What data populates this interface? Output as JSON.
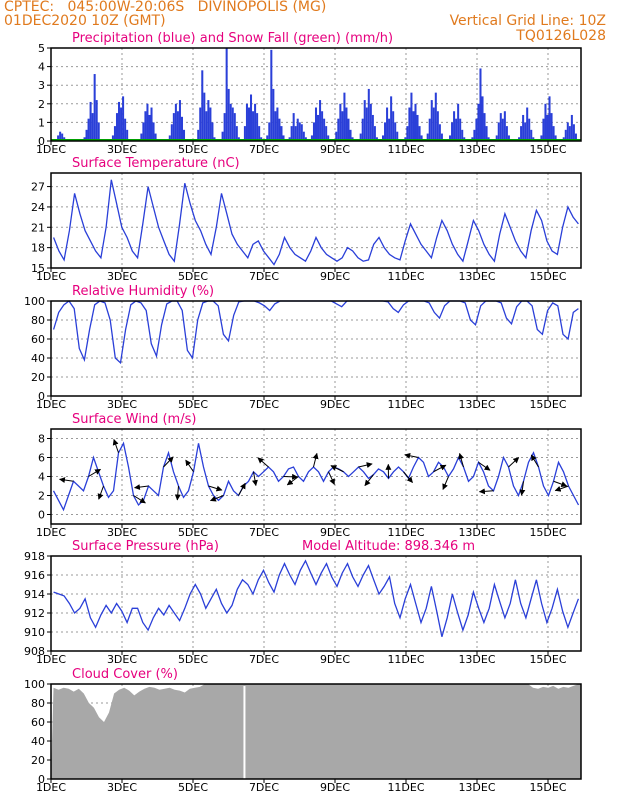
{
  "header": {
    "line1_left": "CPTEC:   045:00W-20:06S   DIVINOPOLIS (MG)",
    "line2_left": "01DEC2020 10Z (GMT)",
    "line2_right": "Vertical Grid Line: 10Z",
    "line3_right": "TQ0126L028"
  },
  "colors": {
    "header": "#e07a1e",
    "title": "#e6007e",
    "series": "#2a3fd8",
    "snow": "#00a000",
    "cloud": "#a8a8a8",
    "grid": "#9a9a9a"
  },
  "chart_data": [
    {
      "id": "precip",
      "type": "bar",
      "title": "Precipitation (blue) and Snow Fall (green) (mm/h)",
      "x_ticks": [
        "1DEC",
        "3DEC",
        "5DEC",
        "7DEC",
        "9DEC",
        "11DEC",
        "13DEC",
        "15DEC"
      ],
      "ylim": [
        0,
        5
      ],
      "y_ticks": [
        0,
        1,
        2,
        3,
        4,
        5
      ],
      "grid": true,
      "series": [
        {
          "values": [
            0,
            0,
            0,
            0.3,
            0.5,
            0.4,
            0.2,
            0,
            0,
            0,
            0,
            0,
            0,
            0,
            0,
            0,
            0.2,
            0.6,
            1.2,
            2.1,
            1.5,
            3.6,
            2.2,
            1.0,
            0,
            0,
            0,
            0,
            0,
            0,
            0.3,
            0.8,
            1.5,
            2.1,
            1.8,
            2.4,
            1.2,
            0.6,
            0,
            0,
            0,
            0,
            0,
            0,
            0.4,
            1.0,
            1.6,
            2.0,
            1.4,
            1.8,
            1.0,
            0.4,
            0,
            0,
            0,
            0,
            0,
            0,
            0.3,
            0.9,
            1.5,
            2.0,
            1.6,
            2.2,
            1.3,
            0.6,
            0,
            0,
            0,
            0,
            0,
            0.1,
            0.6,
            1.8,
            3.8,
            2.6,
            1.6,
            2.2,
            1.8,
            1.0,
            0.2,
            0,
            0,
            0,
            0.5,
            1.5,
            5.0,
            2.8,
            2.0,
            1.8,
            1.5,
            0.8,
            0.2,
            0,
            0,
            0.8,
            2.0,
            1.8,
            2.5,
            1.6,
            2.0,
            1.5,
            0.8,
            0.2,
            0,
            0,
            0.3,
            1.0,
            4.9,
            2.8,
            1.6,
            1.8,
            1.2,
            0.8,
            0.3,
            0,
            0,
            0.2,
            0.8,
            1.5,
            0.8,
            1.2,
            1.0,
            0.9,
            0.5,
            0.2,
            0,
            0,
            0.3,
            1.0,
            1.8,
            1.4,
            2.2,
            1.6,
            1.2,
            0.8,
            0.3,
            0,
            0,
            0,
            0.5,
            1.2,
            2.0,
            1.6,
            2.6,
            1.8,
            1.2,
            0.6,
            0.2,
            0,
            0,
            0,
            0.4,
            1.2,
            2.2,
            1.8,
            2.8,
            2.0,
            1.4,
            0.8,
            0.2,
            0,
            0,
            0.3,
            1.0,
            1.8,
            1.2,
            2.4,
            1.6,
            1.0,
            0.5,
            0,
            0,
            0,
            0.2,
            0.8,
            1.8,
            2.6,
            1.6,
            2.0,
            1.4,
            0.8,
            0.3,
            0,
            0,
            0.4,
            1.2,
            2.2,
            1.8,
            2.6,
            1.6,
            0.9,
            0.4,
            0,
            0,
            0,
            0.3,
            1.0,
            1.6,
            1.2,
            2.0,
            1.2,
            0.6,
            0.2,
            0,
            0,
            0,
            0.2,
            0.6,
            1.2,
            2.0,
            3.9,
            2.4,
            1.5,
            0.8,
            0.2,
            0,
            0,
            0,
            0.3,
            1.0,
            1.5,
            1.2,
            1.6,
            0.8,
            0.3,
            0,
            0,
            0,
            0,
            0.2,
            0.8,
            1.4,
            1.0,
            1.8,
            1.2,
            0.6,
            0.2,
            0,
            0,
            0,
            0.3,
            1.2,
            2.0,
            1.4,
            2.4,
            1.5,
            0.8,
            0.3,
            0,
            0,
            0,
            0.2,
            0.6,
            1.0,
            0.8,
            1.4,
            0.9,
            0.4,
            0,
            0
          ]
        },
        {
          "values": [
            0
          ]
        }
      ]
    },
    {
      "id": "temp",
      "type": "line",
      "title": "Surface Temperature (nC)",
      "x_ticks": [
        "1DEC",
        "3DEC",
        "5DEC",
        "7DEC",
        "9DEC",
        "11DEC",
        "13DEC",
        "15DEC"
      ],
      "ylim": [
        15,
        29
      ],
      "y_ticks": [
        15,
        18,
        21,
        24,
        27
      ],
      "grid": true,
      "series": [
        {
          "values": [
            19.5,
            17.5,
            16.2,
            20.5,
            26.0,
            23.0,
            20.5,
            19.0,
            17.5,
            16.5,
            21.0,
            28.0,
            24.5,
            21.0,
            19.5,
            17.5,
            16.5,
            21.5,
            27.0,
            24.0,
            21.0,
            19.0,
            17.0,
            16.0,
            21.5,
            27.5,
            24.5,
            22.0,
            20.5,
            18.5,
            17.0,
            21.0,
            26.0,
            23.0,
            20.0,
            18.5,
            17.5,
            16.5,
            18.5,
            19.0,
            17.5,
            16.5,
            15.5,
            17.0,
            19.5,
            18.0,
            17.0,
            16.5,
            16.0,
            17.5,
            19.5,
            18.0,
            17.0,
            16.5,
            16.0,
            16.5,
            18.0,
            17.5,
            16.5,
            16.0,
            16.2,
            18.5,
            19.5,
            18.0,
            17.0,
            16.5,
            16.2,
            19.0,
            21.5,
            20.0,
            18.5,
            17.5,
            16.5,
            19.5,
            22.0,
            20.5,
            18.5,
            17.0,
            16.0,
            19.0,
            22.0,
            20.5,
            18.5,
            17.0,
            16.0,
            20.0,
            23.0,
            21.0,
            19.0,
            17.5,
            16.5,
            20.5,
            23.5,
            22.0,
            19.0,
            17.5,
            17.0,
            21.0,
            24.0,
            22.5,
            21.5
          ]
        }
      ]
    },
    {
      "id": "rh",
      "type": "line",
      "title": "Relative Humidity (%)",
      "x_ticks": [
        "1DEC",
        "3DEC",
        "5DEC",
        "7DEC",
        "9DEC",
        "11DEC",
        "13DEC",
        "15DEC"
      ],
      "ylim": [
        0,
        100
      ],
      "y_ticks": [
        0,
        20,
        40,
        60,
        80,
        100
      ],
      "grid": true,
      "series": [
        {
          "values": [
            70,
            88,
            96,
            100,
            92,
            50,
            38,
            70,
            96,
            100,
            98,
            80,
            40,
            35,
            70,
            96,
            100,
            98,
            90,
            55,
            42,
            75,
            97,
            100,
            100,
            90,
            48,
            40,
            80,
            98,
            100,
            100,
            95,
            65,
            58,
            85,
            99,
            100,
            100,
            100,
            98,
            95,
            90,
            97,
            100,
            100,
            100,
            100,
            100,
            100,
            100,
            100,
            100,
            100,
            100,
            97,
            94,
            100,
            100,
            100,
            100,
            100,
            100,
            100,
            100,
            99,
            92,
            88,
            96,
            100,
            100,
            100,
            100,
            98,
            88,
            82,
            95,
            100,
            100,
            100,
            98,
            80,
            75,
            95,
            100,
            100,
            100,
            98,
            82,
            76,
            94,
            100,
            100,
            95,
            70,
            65,
            90,
            98,
            95,
            65,
            60,
            88,
            92
          ]
        }
      ]
    },
    {
      "id": "wind",
      "type": "line",
      "title": "Surface Wind (m/s)",
      "x_ticks": [
        "1DEC",
        "3DEC",
        "5DEC",
        "7DEC",
        "9DEC",
        "11DEC",
        "13DEC",
        "15DEC"
      ],
      "ylim": [
        -1,
        9
      ],
      "y_ticks": [
        0,
        2,
        4,
        6,
        8
      ],
      "grid": true,
      "series": [
        {
          "values": [
            2.5,
            1.5,
            0.5,
            2.0,
            3.5,
            3.0,
            2.5,
            4.0,
            6.0,
            4.5,
            3.0,
            1.8,
            2.5,
            6.5,
            7.5,
            5.0,
            2.0,
            1.0,
            1.5,
            3.0,
            2.5,
            2.0,
            5.0,
            6.5,
            4.5,
            3.0,
            1.8,
            2.5,
            4.5,
            7.5,
            5.0,
            3.0,
            2.0,
            1.5,
            2.0,
            3.5,
            2.5,
            2.0,
            3.0,
            3.5,
            4.5,
            4.0,
            4.5,
            5.0,
            4.5,
            3.5,
            4.0,
            4.8,
            5.0,
            4.0,
            3.5,
            4.5,
            5.0,
            4.5,
            3.5,
            4.5,
            5.0,
            4.8,
            4.5,
            4.0,
            4.5,
            5.0,
            4.5,
            3.8,
            4.2,
            4.8,
            4.5,
            3.8,
            4.5,
            5.0,
            4.5,
            3.8,
            5.0,
            6.0,
            5.5,
            4.0,
            4.5,
            5.5,
            5.0,
            4.0,
            4.8,
            6.0,
            5.0,
            3.5,
            4.0,
            5.5,
            4.5,
            3.0,
            2.5,
            4.0,
            6.0,
            5.0,
            3.0,
            2.0,
            3.5,
            5.5,
            6.5,
            5.0,
            3.0,
            2.0,
            3.5,
            5.5,
            4.5,
            3.0,
            2.0,
            1.0
          ]
        }
      ]
    },
    {
      "id": "pres",
      "type": "line",
      "title": "Surface Pressure (hPa)",
      "annotation": "Model Altitude: 898.346 m",
      "x_ticks": [
        "1DEC",
        "3DEC",
        "5DEC",
        "7DEC",
        "9DEC",
        "11DEC",
        "13DEC",
        "15DEC"
      ],
      "ylim": [
        908,
        918
      ],
      "y_ticks": [
        908,
        910,
        912,
        914,
        916,
        918
      ],
      "grid": true,
      "series": [
        {
          "values": [
            914.2,
            914.0,
            913.8,
            913.0,
            912.0,
            912.5,
            913.5,
            911.5,
            910.5,
            911.8,
            912.8,
            912.0,
            913.0,
            912.2,
            911.0,
            912.5,
            912.5,
            911.0,
            910.2,
            911.5,
            912.5,
            911.8,
            912.8,
            912.0,
            911.2,
            912.5,
            914.0,
            915.0,
            914.0,
            912.5,
            913.5,
            914.5,
            913.0,
            912.0,
            912.8,
            914.5,
            915.5,
            915.0,
            914.0,
            915.5,
            916.5,
            915.2,
            914.2,
            916.0,
            917.2,
            916.0,
            915.0,
            916.5,
            917.5,
            916.2,
            915.0,
            916.2,
            917.2,
            915.8,
            914.8,
            916.2,
            917.2,
            915.8,
            914.8,
            916.0,
            917.0,
            915.5,
            914.0,
            914.8,
            915.8,
            913.0,
            911.5,
            913.5,
            915.0,
            913.0,
            911.0,
            912.5,
            914.8,
            912.2,
            909.5,
            911.5,
            914.0,
            912.0,
            910.2,
            911.8,
            914.2,
            912.5,
            911.0,
            912.5,
            915.0,
            913.2,
            911.5,
            913.0,
            915.5,
            913.0,
            911.5,
            913.5,
            915.5,
            913.0,
            911.0,
            912.5,
            914.5,
            912.2,
            910.5,
            912.0,
            913.5
          ]
        }
      ]
    },
    {
      "id": "cloud",
      "type": "area",
      "title": "Cloud Cover (%)",
      "x_ticks": [
        "1DEC",
        "3DEC",
        "5DEC",
        "7DEC",
        "9DEC",
        "11DEC",
        "13DEC",
        "15DEC"
      ],
      "ylim": [
        0,
        100
      ],
      "y_ticks": [
        0,
        20,
        40,
        60,
        80,
        100
      ],
      "grid": true,
      "series": [
        {
          "values": [
            96,
            94,
            96,
            95,
            92,
            95,
            90,
            80,
            75,
            65,
            60,
            70,
            90,
            94,
            96,
            93,
            88,
            92,
            95,
            97,
            96,
            94,
            95,
            96,
            94,
            93,
            91,
            95,
            96,
            97,
            100,
            100,
            100,
            100,
            100,
            100,
            100,
            100,
            100,
            100,
            100,
            100,
            100,
            100,
            100,
            100,
            100,
            100,
            100,
            100,
            100,
            100,
            100,
            100,
            100,
            100,
            100,
            100,
            100,
            100,
            100,
            100,
            100,
            100,
            100,
            100,
            100,
            100,
            100,
            100,
            100,
            100,
            100,
            100,
            100,
            100,
            100,
            100,
            100,
            100,
            100,
            100,
            100,
            100,
            100,
            100,
            100,
            100,
            100,
            100,
            100,
            100,
            100,
            100,
            100,
            96,
            95,
            97,
            96,
            98,
            95,
            97,
            96,
            98,
            100
          ]
        }
      ]
    }
  ]
}
